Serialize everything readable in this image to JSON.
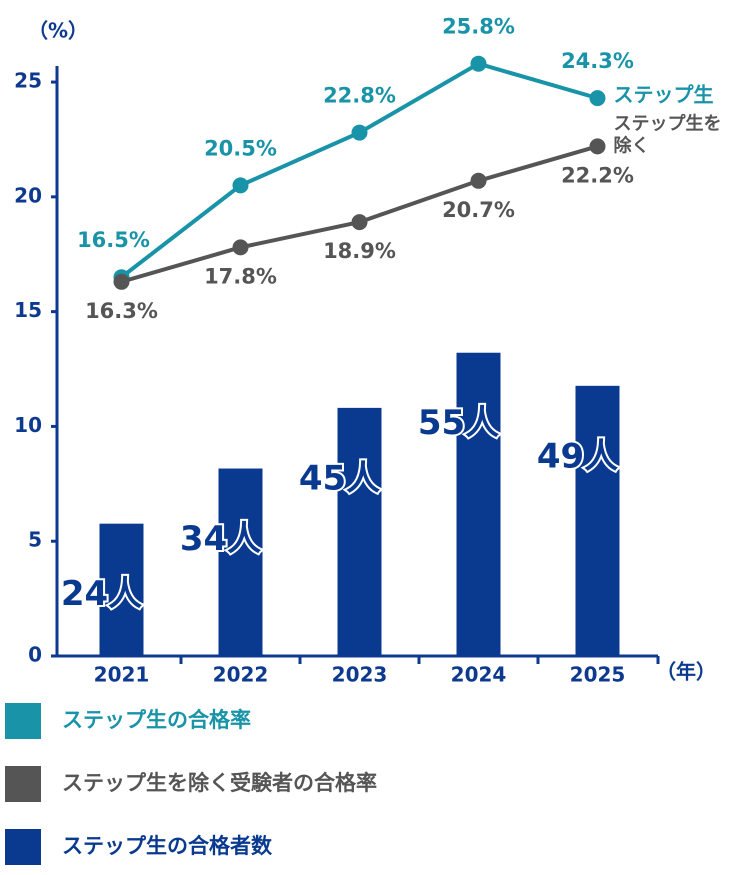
{
  "chart_data": {
    "type": "bar-line",
    "ylabel": "（%）",
    "xlabel": "（年）",
    "categories": [
      "2021",
      "2022",
      "2023",
      "2024",
      "2025"
    ],
    "ylim": [
      0,
      25.7
    ],
    "yticks": [
      0,
      5,
      10,
      15,
      20,
      25
    ],
    "y2lim": [
      0,
      107
    ],
    "axis_color": "#0d3a8e",
    "series": [
      {
        "name": "ステップ生の合格率",
        "type": "line",
        "color": "#1893a8",
        "label": "ステップ生",
        "values": [
          16.5,
          20.5,
          22.8,
          25.8,
          24.3
        ],
        "value_labels": [
          "16.5%",
          "20.5%",
          "22.8%",
          "25.8%",
          "24.3%"
        ]
      },
      {
        "name": "ステップ生を除く受験者の合格率",
        "type": "line",
        "color": "#555555",
        "label": [
          "ステップ生を",
          "除く"
        ],
        "values": [
          16.3,
          17.8,
          18.9,
          20.7,
          22.2
        ],
        "value_labels": [
          "16.3%",
          "17.8%",
          "18.9%",
          "20.7%",
          "22.2%"
        ]
      },
      {
        "name": "ステップ生の合格者数",
        "type": "bar",
        "axis": "y2",
        "color": "#0a3a8f",
        "values": [
          24,
          34,
          45,
          55,
          49
        ],
        "value_labels": [
          "24人",
          "34人",
          "45人",
          "55人",
          "49人"
        ]
      }
    ]
  }
}
